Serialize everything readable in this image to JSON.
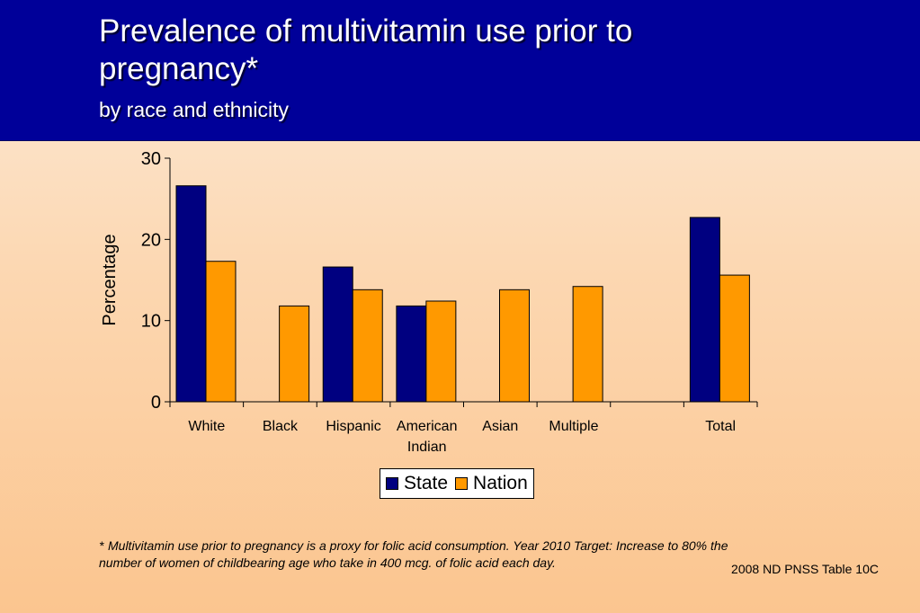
{
  "header": {
    "title": "Prevalence of multivitamin use prior to pregnancy*",
    "subtitle": "by race and ethnicity"
  },
  "chart_data": {
    "type": "bar",
    "categories": [
      "White",
      "Black",
      "Hispanic",
      "American Indian",
      "Asian",
      "Multiple",
      "",
      "Total"
    ],
    "series": [
      {
        "name": "State",
        "color": "#000080",
        "values": [
          26.6,
          null,
          16.6,
          11.8,
          null,
          null,
          null,
          22.7
        ]
      },
      {
        "name": "Nation",
        "color": "#ff9900",
        "values": [
          17.3,
          11.8,
          13.8,
          12.4,
          13.8,
          14.2,
          null,
          15.6
        ]
      }
    ],
    "ylabel": "Percentage",
    "xlabel": "",
    "ylim": [
      0,
      30
    ],
    "yticks": [
      0,
      10,
      20,
      30
    ],
    "grid": false,
    "legend_position": "bottom"
  },
  "legend": {
    "state_label": "State",
    "nation_label": "Nation"
  },
  "footnote": {
    "marker": "*",
    "text": "Multivitamin use prior to pregnancy is a proxy for folic acid consumption. Year 2010 Target: Increase to 80% the number of women of childbearing age who take in 400 mcg. of folic acid each day."
  },
  "source": "2008 ND PNSS Table 10C"
}
